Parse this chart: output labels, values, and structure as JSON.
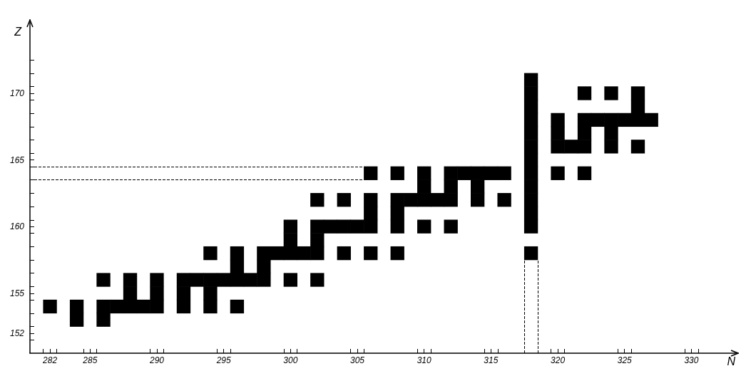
{
  "chart_data": {
    "type": "scatter",
    "xlabel": "N",
    "ylabel": "Z",
    "marker": "square",
    "grid": false,
    "x": [
      282,
      284,
      284,
      286,
      286,
      286,
      287,
      288,
      288,
      288,
      289,
      290,
      290,
      290,
      292,
      292,
      292,
      293,
      294,
      294,
      294,
      294,
      295,
      296,
      296,
      296,
      296,
      297,
      298,
      298,
      298,
      299,
      300,
      300,
      300,
      300,
      301,
      302,
      302,
      302,
      302,
      302,
      303,
      304,
      304,
      304,
      305,
      306,
      306,
      306,
      306,
      306,
      308,
      308,
      308,
      308,
      308,
      309,
      310,
      310,
      310,
      310,
      311,
      312,
      312,
      312,
      312,
      313,
      314,
      314,
      314,
      315,
      316,
      316,
      318,
      318,
      318,
      318,
      318,
      318,
      318,
      318,
      318,
      318,
      318,
      318,
      318,
      320,
      320,
      320,
      320,
      321,
      322,
      322,
      322,
      322,
      322,
      323,
      324,
      324,
      324,
      324,
      325,
      326,
      326,
      326,
      326,
      327
    ],
    "values": [
      154,
      153,
      154,
      153,
      154,
      156,
      154,
      154,
      155,
      156,
      154,
      154,
      155,
      156,
      154,
      155,
      156,
      156,
      154,
      155,
      156,
      158,
      156,
      154,
      156,
      157,
      158,
      156,
      156,
      157,
      158,
      158,
      156,
      158,
      159,
      160,
      158,
      156,
      158,
      159,
      160,
      162,
      160,
      158,
      160,
      162,
      160,
      158,
      160,
      161,
      162,
      164,
      158,
      160,
      161,
      162,
      164,
      162,
      160,
      162,
      163,
      164,
      162,
      160,
      162,
      163,
      164,
      164,
      162,
      163,
      164,
      164,
      162,
      164,
      158,
      160,
      161,
      162,
      163,
      164,
      165,
      166,
      167,
      168,
      169,
      170,
      171,
      164,
      166,
      167,
      168,
      166,
      164,
      166,
      167,
      168,
      170,
      168,
      166,
      167,
      168,
      170,
      168,
      166,
      168,
      169,
      170,
      168
    ],
    "color": "#000000",
    "xlim": [
      280.5,
      333.5
    ],
    "xticks": [
      {
        "value": 281.5,
        "label": null
      },
      282,
      {
        "value": 282.5,
        "label": null
      },
      {
        "value": 284.5,
        "label": null
      },
      285,
      {
        "value": 285.5,
        "label": null
      },
      {
        "value": 289.5,
        "label": null
      },
      290,
      {
        "value": 290.5,
        "label": null
      },
      {
        "value": 294.5,
        "label": null
      },
      295,
      {
        "value": 295.5,
        "label": null
      },
      {
        "value": 299.5,
        "label": null
      },
      300,
      {
        "value": 300.5,
        "label": null
      },
      {
        "value": 304.5,
        "label": null
      },
      305,
      {
        "value": 305.5,
        "label": null
      },
      {
        "value": 309.5,
        "label": null
      },
      310,
      {
        "value": 310.5,
        "label": null
      },
      {
        "value": 314.5,
        "label": null
      },
      315,
      {
        "value": 315.5,
        "label": null
      },
      {
        "value": 319.5,
        "label": null
      },
      320,
      {
        "value": 320.5,
        "label": null
      },
      {
        "value": 324.5,
        "label": null
      },
      325,
      {
        "value": 325.5,
        "label": null
      },
      {
        "value": 329.5,
        "label": null
      },
      330,
      {
        "value": 330.5,
        "label": null
      }
    ],
    "ylim": [
      150.5,
      175.5
    ],
    "yticks": [
      {
        "value": 151.5,
        "label": null
      },
      152,
      {
        "value": 152.5,
        "label": null
      },
      {
        "value": 153.5,
        "label": null
      },
      {
        "value": 154.5,
        "label": null
      },
      155,
      {
        "value": 155.5,
        "label": null
      },
      {
        "value": 156.5,
        "label": null
      },
      {
        "value": 157.5,
        "label": null
      },
      {
        "value": 158.5,
        "label": null
      },
      {
        "value": 159.5,
        "label": null
      },
      160,
      {
        "value": 160.5,
        "label": null
      },
      {
        "value": 161.5,
        "label": null
      },
      {
        "value": 162.5,
        "label": null
      },
      {
        "value": 163.5,
        "label": null
      },
      {
        "value": 164.5,
        "label": null
      },
      165,
      {
        "value": 165.5,
        "label": null
      },
      {
        "value": 166.5,
        "label": null
      },
      {
        "value": 167.5,
        "label": null
      },
      {
        "value": 168.5,
        "label": null
      },
      {
        "value": 169.5,
        "label": null
      },
      170,
      {
        "value": 170.5,
        "label": null
      },
      {
        "value": 171.5,
        "label": null
      },
      {
        "value": 172.5,
        "label": null
      }
    ],
    "ref_lines": [
      {
        "axis": "y",
        "value": 164.5,
        "line_style": "dashed",
        "color": "#000000"
      },
      {
        "axis": "y",
        "value": 163.5,
        "line_style": "dashed",
        "color": "#000000"
      },
      {
        "axis": "x",
        "value": 317.5,
        "line_style": "dashed",
        "color": "#000000"
      },
      {
        "axis": "x",
        "value": 318.5,
        "line_style": "dashed",
        "color": "#000000"
      }
    ]
  }
}
